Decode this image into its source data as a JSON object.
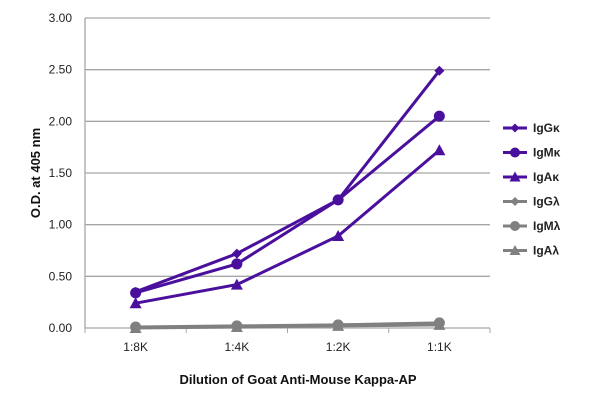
{
  "chart_data": {
    "type": "line",
    "title": "",
    "xlabel": "Dilution of Goat Anti-Mouse Kappa-AP",
    "ylabel": "O.D. at 405 nm",
    "categories": [
      "1:8K",
      "1:4K",
      "1:2K",
      "1:1K"
    ],
    "ylim": [
      0,
      3
    ],
    "yticks": [
      "0.00",
      "0.50",
      "1.00",
      "1.50",
      "2.00",
      "2.50",
      "3.00"
    ],
    "grid": true,
    "legend_position": "right",
    "series": [
      {
        "name": "IgGκ",
        "marker": "diamond",
        "color": "#4a0f9c",
        "values": [
          0.35,
          0.72,
          1.24,
          2.49
        ]
      },
      {
        "name": "IgMκ",
        "marker": "circle",
        "color": "#4a0f9c",
        "values": [
          0.34,
          0.62,
          1.24,
          2.05
        ]
      },
      {
        "name": "IgAκ",
        "marker": "triangle",
        "color": "#4a0f9c",
        "values": [
          0.24,
          0.42,
          0.89,
          1.72
        ]
      },
      {
        "name": "IgGλ",
        "marker": "diamond",
        "color": "#808080",
        "values": [
          0.01,
          0.01,
          0.03,
          0.04
        ]
      },
      {
        "name": "IgMλ",
        "marker": "circle",
        "color": "#808080",
        "values": [
          0.01,
          0.02,
          0.03,
          0.05
        ]
      },
      {
        "name": "IgAλ",
        "marker": "triangle",
        "color": "#808080",
        "values": [
          0.0,
          0.01,
          0.02,
          0.03
        ]
      }
    ]
  }
}
